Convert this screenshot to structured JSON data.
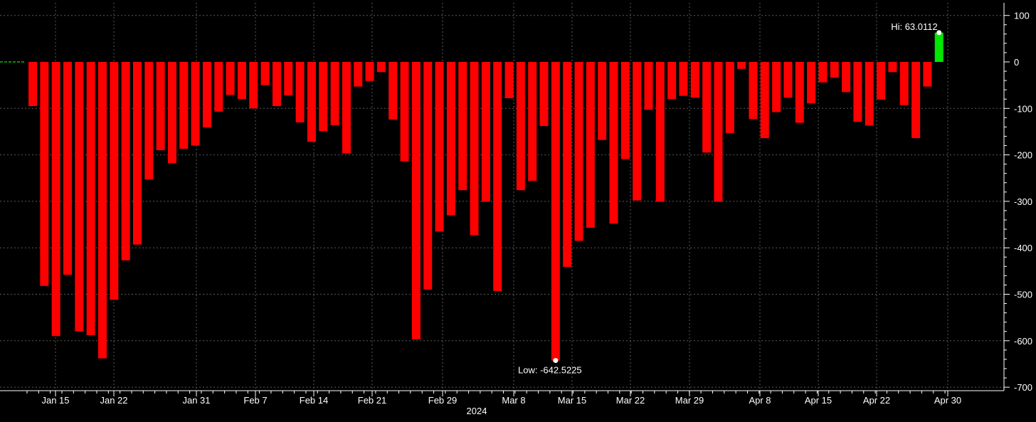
{
  "chart_data": {
    "type": "bar",
    "title": "",
    "xlabel": "2024",
    "ylabel": "",
    "ylim": [
      -720,
      110
    ],
    "yticks": [
      100,
      0,
      -100,
      -200,
      -300,
      -400,
      -500,
      -600,
      -700
    ],
    "grid": true,
    "y_axis_side": "right",
    "x_tick_labels": [
      "Jan 15",
      "Jan 22",
      "Jan 31",
      "Feb 7",
      "Feb 14",
      "Feb 21",
      "Feb 29",
      "Mar 8",
      "Mar 15",
      "Mar 22",
      "Mar 29",
      "Apr 8",
      "Apr 15",
      "Apr 22",
      "Apr 30"
    ],
    "year_label": "2024",
    "colors": {
      "negative": "#ff0000",
      "positive": "#00e600",
      "background": "#000000",
      "grid": "#5a5a5a",
      "axis": "#ffffff",
      "zero_line": "#00c000"
    },
    "series": [
      {
        "values": [
          -95,
          -482,
          -590,
          -458,
          -580,
          -588,
          -638,
          -512,
          -427,
          -393,
          -253,
          -190,
          -218,
          -187,
          -180,
          -141,
          -107,
          -71,
          -80,
          -100,
          -50,
          -95,
          -72,
          -130,
          -172,
          -149,
          -136,
          -197,
          -53,
          -41,
          -22,
          -124,
          -214,
          -597,
          -490,
          -365,
          -330,
          -276,
          -373,
          -301,
          -493,
          -78,
          -276,
          -256,
          -138,
          -642.5225,
          -441,
          -385,
          -357,
          -168,
          -348,
          -209,
          -298,
          -103,
          -301,
          -80,
          -73,
          -77,
          -195,
          -301,
          -153,
          -15,
          -123,
          -164,
          -108,
          -77,
          -131,
          -89,
          -44,
          -34,
          -65,
          -129,
          -137,
          -81,
          -22,
          -93,
          -164,
          -53,
          63.0112
        ]
      }
    ],
    "annotations": {
      "high": {
        "label": "Hi: 63.0112",
        "value": 63.0112
      },
      "low": {
        "label": "Low: -642.5225",
        "value": -642.5225
      }
    }
  }
}
